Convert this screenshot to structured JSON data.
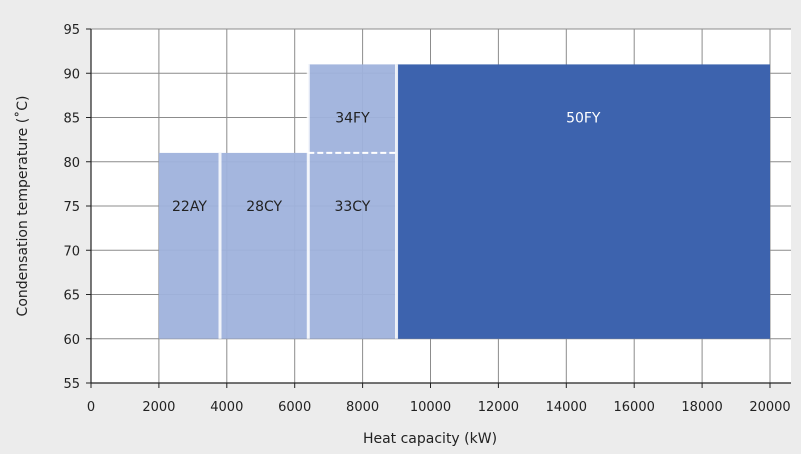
{
  "chart_data": {
    "type": "range-area",
    "xlabel": "Heat capacity (kW)",
    "ylabel": "Condensation temperature (˚C)",
    "xlim": [
      0,
      20000
    ],
    "ylim": [
      55,
      95
    ],
    "xticks": [
      0,
      2000,
      4000,
      6000,
      8000,
      10000,
      12000,
      14000,
      16000,
      18000,
      20000
    ],
    "yticks": [
      55,
      60,
      65,
      70,
      75,
      80,
      85,
      90,
      95
    ],
    "grid": true,
    "regions": [
      {
        "name": "22AY",
        "x": [
          2000,
          3800
        ],
        "y": [
          60,
          81
        ],
        "color": "#9fb2dc",
        "label_y": 75
      },
      {
        "name": "28CY",
        "x": [
          3800,
          6400
        ],
        "y": [
          60,
          81
        ],
        "color": "#9fb2dc",
        "label_y": 75
      },
      {
        "name": "33CY",
        "x": [
          6400,
          9000
        ],
        "y": [
          60,
          81
        ],
        "color": "#9fb2dc",
        "label_y": 75
      },
      {
        "name": "34FY",
        "x": [
          6400,
          9000
        ],
        "y": [
          81,
          91
        ],
        "color": "#9fb2dc",
        "label_y": 85
      },
      {
        "name": "50FY",
        "x": [
          9000,
          20000
        ],
        "y": [
          60,
          91
        ],
        "color": "#3d63ae",
        "label_y": 85
      }
    ]
  }
}
